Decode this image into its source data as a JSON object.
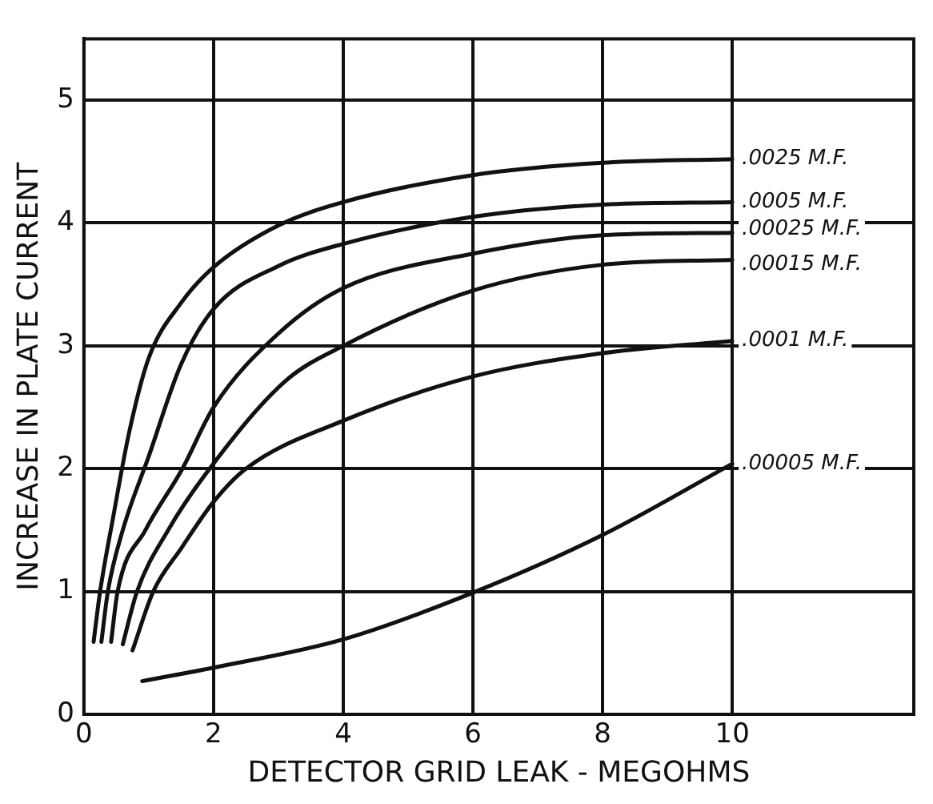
{
  "chart_data": {
    "type": "line",
    "xlabel": "DETECTOR GRID LEAK - MEGOHMS",
    "ylabel": "INCREASE IN PLATE CURRENT",
    "xlim": [
      0,
      12.8
    ],
    "xticks": [
      0,
      2,
      4,
      6,
      8,
      10
    ],
    "ylim": [
      0,
      5.5
    ],
    "yticks": [
      0,
      1,
      2,
      3,
      4,
      5
    ],
    "grid": true,
    "legend": false,
    "marker": "none",
    "line_style": "solid",
    "series": [
      {
        "name": ".0025 M.F.",
        "color": "#111111",
        "x": [
          0.15,
          0.25,
          0.45,
          0.7,
          1.0,
          1.5,
          2,
          3,
          4,
          6,
          8,
          10
        ],
        "values": [
          0.59,
          1.0,
          1.6,
          2.3,
          2.9,
          3.35,
          3.64,
          3.98,
          4.17,
          4.39,
          4.49,
          4.52
        ]
      },
      {
        "name": ".0005 M.F.",
        "color": "#111111",
        "x": [
          0.27,
          0.37,
          0.6,
          1.0,
          1.5,
          2,
          3,
          4,
          6,
          8,
          10
        ],
        "values": [
          0.59,
          1.0,
          1.5,
          2.1,
          2.85,
          3.3,
          3.65,
          3.83,
          4.05,
          4.15,
          4.17
        ]
      },
      {
        "name": ".00025 M.F.",
        "color": "#111111",
        "x": [
          0.42,
          0.52,
          0.95,
          1.52,
          2,
          3,
          4,
          6,
          8,
          10
        ],
        "values": [
          0.59,
          1.0,
          1.5,
          2.0,
          2.5,
          3.1,
          3.47,
          3.75,
          3.9,
          3.92
        ]
      },
      {
        "name": ".00015 M.F.",
        "color": "#111111",
        "x": [
          0.6,
          0.82,
          1.3,
          1.94,
          3.1,
          4,
          6,
          8,
          10
        ],
        "values": [
          0.57,
          1.0,
          1.5,
          2.0,
          2.71,
          3.0,
          3.45,
          3.66,
          3.7
        ]
      },
      {
        "name": ".0001 M.F.",
        "color": "#111111",
        "x": [
          0.75,
          1.07,
          1.5,
          2,
          2.5,
          4,
          6,
          8,
          10
        ],
        "values": [
          0.52,
          1.0,
          1.35,
          1.73,
          2.0,
          2.39,
          2.75,
          2.94,
          3.04
        ]
      },
      {
        "name": ".00005 M.F.",
        "color": "#111111",
        "x": [
          0.9,
          2,
          4,
          6,
          8,
          10
        ],
        "values": [
          0.27,
          0.38,
          0.61,
          0.99,
          1.46,
          2.04
        ]
      }
    ]
  }
}
